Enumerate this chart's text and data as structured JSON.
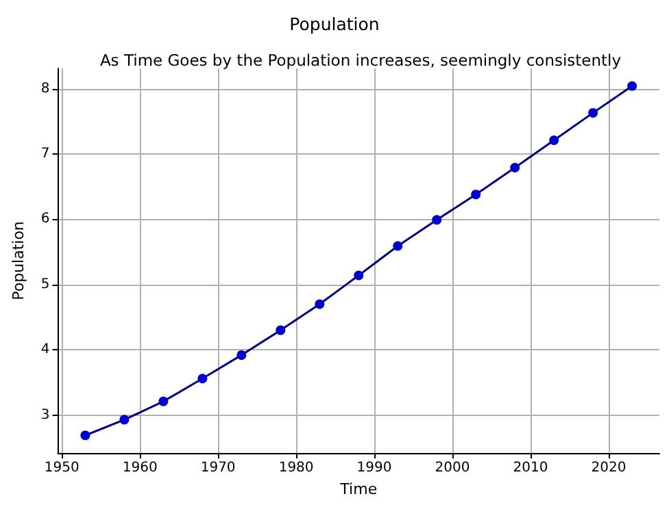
{
  "chart_data": {
    "type": "line",
    "title": "Population",
    "subtitle": "As Time Goes by the Population increases, seemingly consistently",
    "xlabel": "Time",
    "ylabel": "Population",
    "x": [
      1953,
      1958,
      1963,
      1968,
      1973,
      1978,
      1983,
      1988,
      1993,
      1998,
      2003,
      2008,
      2013,
      2018,
      2023
    ],
    "series": [
      {
        "color": "#0000cc",
        "values": [
          2.69,
          2.93,
          3.21,
          3.56,
          3.92,
          4.3,
          4.7,
          5.14,
          5.59,
          5.99,
          6.38,
          6.79,
          7.21,
          7.63,
          8.04
        ]
      }
    ],
    "xlim": [
      1949.5,
      2026.5
    ],
    "xticks": [
      1950,
      1960,
      1970,
      1980,
      1990,
      2000,
      2010,
      2020
    ],
    "ylim": [
      2.42,
      8.31
    ],
    "yticks": [
      3,
      4,
      5,
      6,
      7,
      8
    ],
    "grid": true,
    "marker": "circle",
    "line_style": "solid"
  }
}
